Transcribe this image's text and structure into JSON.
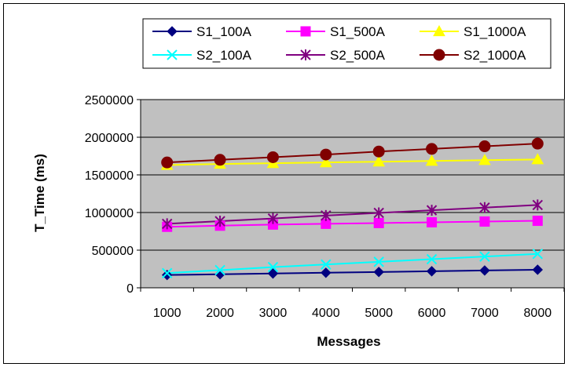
{
  "chart_data": {
    "type": "line",
    "title": "",
    "xlabel": "Messages",
    "ylabel": "T_Time (ms)",
    "categories": [
      "1000",
      "2000",
      "3000",
      "4000",
      "5000",
      "6000",
      "7000",
      "8000"
    ],
    "ylim": [
      0,
      2500000
    ],
    "yticks": [
      "0",
      "500000",
      "1000000",
      "1500000",
      "2000000",
      "2500000"
    ],
    "grid": true,
    "legend_position": "top",
    "plot_background": "#c0c0c0",
    "series": [
      {
        "name": "S1_100A",
        "color": "#000080",
        "marker": "diamond",
        "values": [
          170000,
          180000,
          190000,
          200000,
          210000,
          220000,
          230000,
          240000
        ]
      },
      {
        "name": "S1_500A",
        "color": "#ff00ff",
        "marker": "square",
        "values": [
          810000,
          825000,
          840000,
          850000,
          860000,
          870000,
          880000,
          890000
        ]
      },
      {
        "name": "S1_1000A",
        "color": "#ffff00",
        "marker": "triangle",
        "values": [
          1630000,
          1645000,
          1655000,
          1665000,
          1675000,
          1685000,
          1695000,
          1705000
        ]
      },
      {
        "name": "S2_100A",
        "color": "#00ffff",
        "marker": "x",
        "values": [
          195000,
          235000,
          275000,
          310000,
          345000,
          380000,
          415000,
          450000
        ]
      },
      {
        "name": "S2_500A",
        "color": "#800080",
        "marker": "star",
        "values": [
          850000,
          885000,
          920000,
          960000,
          995000,
          1030000,
          1065000,
          1100000
        ]
      },
      {
        "name": "S2_1000A",
        "color": "#800000",
        "marker": "circle",
        "values": [
          1665000,
          1700000,
          1735000,
          1770000,
          1810000,
          1845000,
          1880000,
          1915000
        ]
      }
    ]
  }
}
